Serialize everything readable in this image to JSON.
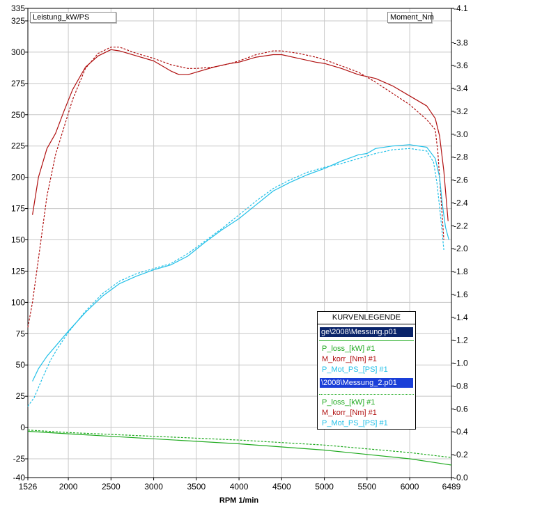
{
  "left_axis_label": "Leistung_kW/PS",
  "right_axis_label": "Moment_Nm",
  "chart_data": {
    "type": "line",
    "xlabel": "RPM  1/min",
    "xlim": [
      1526,
      6489
    ],
    "x_ticks": [
      "1526",
      "2000",
      "2500",
      "3000",
      "3500",
      "4000",
      "4500",
      "5000",
      "5500",
      "6000",
      "6489"
    ],
    "left_ylim": [
      -40,
      335
    ],
    "left_ticks": [
      "335",
      "325",
      "300",
      "275",
      "250",
      "225",
      "200",
      "175",
      "150",
      "125",
      "100",
      "75",
      "50",
      "25",
      "0",
      "-25",
      "-40"
    ],
    "right_ylim": [
      0.0,
      4.1
    ],
    "right_ticks": [
      "-4.1",
      "-3.8",
      "-3.6",
      "-3.4",
      "-3.2",
      "-3.0",
      "-2.8",
      "-2.6",
      "-2.4",
      "-2.2",
      "-2.0",
      "-1.8",
      "-1.6",
      "-1.4",
      "-1.2",
      "-1.0",
      "-0.8",
      "-0.6",
      "-0.4",
      "-0.2",
      "-0.0"
    ],
    "grid": true,
    "legend_title": "KURVENLEGENDE",
    "legend_groups": [
      {
        "file": "ge\\2008\\Messung.p01",
        "style": "solid",
        "entries": [
          "P_loss_[kW] #1",
          "M_korr_[Nm] #1",
          "P_Mot_PS_[PS] #1"
        ]
      },
      {
        "file": "\\2008\\Messung_2.p01",
        "style": "dashed",
        "entries": [
          "P_loss_[kW] #1",
          "M_korr_[Nm] #1",
          "P_Mot_PS_[PS] #1"
        ]
      }
    ],
    "colors": {
      "P_loss": "#1faa1f",
      "M_korr": "#b01010",
      "P_Mot_PS": "#22c0e8"
    },
    "series": [
      {
        "legend_group": 0,
        "legend_entry": 0,
        "color": "#1faa1f",
        "dash": false,
        "x": [
          1526,
          2000,
          3000,
          4000,
          5000,
          6000,
          6489
        ],
        "y": [
          -3,
          -5,
          -9,
          -13,
          -18,
          -25,
          -30
        ]
      },
      {
        "legend_group": 1,
        "legend_entry": 0,
        "color": "#1faa1f",
        "dash": true,
        "x": [
          1526,
          2000,
          3000,
          4000,
          5000,
          6000,
          6489
        ],
        "y": [
          -2,
          -4,
          -7,
          -10,
          -14,
          -20,
          -24
        ]
      },
      {
        "legend_group": 0,
        "legend_entry": 1,
        "color": "#b01010",
        "dash": false,
        "x": [
          1580,
          1650,
          1750,
          1850,
          1950,
          2050,
          2200,
          2350,
          2500,
          2600,
          2800,
          3000,
          3200,
          3300,
          3400,
          3500,
          3700,
          3900,
          4000,
          4200,
          4400,
          4500,
          4700,
          4900,
          5000,
          5200,
          5400,
          5600,
          5800,
          6000,
          6200,
          6300,
          6350,
          6400,
          6450
        ],
        "y": [
          170,
          200,
          223,
          235,
          253,
          270,
          288,
          297,
          302,
          301,
          297,
          293,
          285,
          282,
          282,
          284,
          288,
          291,
          292,
          296,
          298,
          298,
          295,
          292,
          291,
          287,
          282,
          279,
          273,
          265,
          257,
          247,
          233,
          205,
          165
        ]
      },
      {
        "legend_group": 1,
        "legend_entry": 1,
        "color": "#b01010",
        "dash": true,
        "x": [
          1526,
          1580,
          1650,
          1750,
          1850,
          1950,
          2050,
          2200,
          2350,
          2500,
          2600,
          2800,
          3000,
          3200,
          3400,
          3500,
          3700,
          3900,
          4000,
          4200,
          4400,
          4500,
          4700,
          4900,
          5000,
          5200,
          5400,
          5600,
          5800,
          6000,
          6200,
          6300,
          6330,
          6360,
          6400
        ],
        "y": [
          80,
          100,
          135,
          185,
          218,
          240,
          262,
          287,
          299,
          304,
          304,
          299,
          295,
          290,
          287,
          287,
          288,
          291,
          293,
          298,
          301,
          301,
          299,
          296,
          294,
          289,
          284,
          276,
          267,
          258,
          246,
          238,
          220,
          190,
          150
        ]
      },
      {
        "legend_group": 0,
        "legend_entry": 2,
        "color": "#22c0e8",
        "dash": false,
        "x": [
          1580,
          1650,
          1750,
          1850,
          2000,
          2200,
          2400,
          2600,
          2800,
          3000,
          3200,
          3400,
          3600,
          3800,
          4000,
          4200,
          4400,
          4600,
          4800,
          5000,
          5200,
          5400,
          5500,
          5600,
          5800,
          6000,
          6200,
          6300,
          6350,
          6380,
          6420,
          6460
        ],
        "y": [
          37,
          47,
          57,
          65,
          77,
          92,
          105,
          115,
          121,
          126,
          130,
          137,
          148,
          158,
          167,
          178,
          189,
          196,
          202,
          207,
          213,
          218,
          219,
          223,
          225,
          226,
          224,
          215,
          200,
          180,
          160,
          150
        ]
      },
      {
        "legend_group": 1,
        "legend_entry": 2,
        "color": "#22c0e8",
        "dash": true,
        "x": [
          1526,
          1600,
          1700,
          1800,
          1900,
          2000,
          2200,
          2400,
          2600,
          2800,
          3000,
          3200,
          3400,
          3600,
          3800,
          4000,
          4200,
          4400,
          4600,
          4800,
          5000,
          5200,
          5400,
          5600,
          5800,
          6000,
          6200,
          6280,
          6320,
          6360,
          6400
        ],
        "y": [
          17,
          24,
          40,
          55,
          66,
          76,
          93,
          107,
          117,
          123,
          127,
          131,
          139,
          149,
          159,
          170,
          181,
          191,
          198,
          204,
          208,
          211,
          215,
          219,
          222,
          223,
          221,
          212,
          195,
          170,
          142
        ]
      }
    ]
  }
}
